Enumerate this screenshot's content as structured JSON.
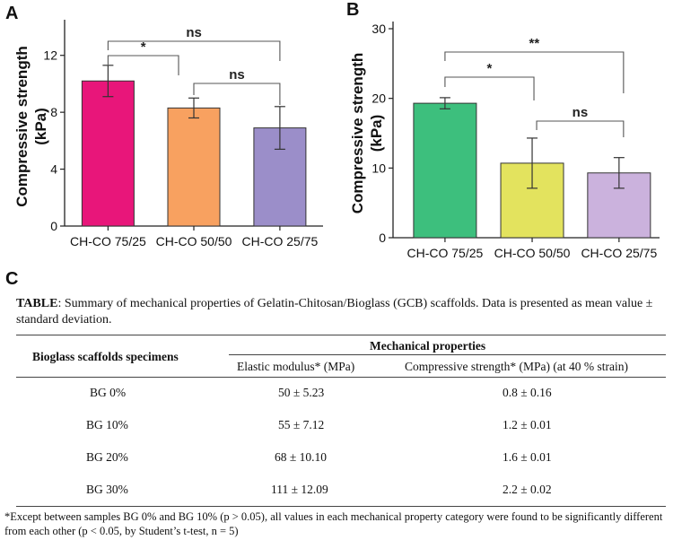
{
  "panels": {
    "a": "A",
    "b": "B",
    "c": "C"
  },
  "chart_data": [
    {
      "type": "bar",
      "panel": "A",
      "title": "",
      "xlabel": "",
      "ylabel": "Compressive strength\n(kPa)",
      "ylabel_lines": [
        "Compressive strength",
        "(kPa)"
      ],
      "ylim": [
        0,
        14
      ],
      "yticks": [
        0,
        4,
        8,
        12
      ],
      "categories": [
        "CH-CO 75/25",
        "CH-CO 50/50",
        "CH-CO 25/75"
      ],
      "values": [
        10.2,
        8.3,
        6.9
      ],
      "errors": [
        1.1,
        0.7,
        1.5
      ],
      "colors": [
        "#e8167a",
        "#f8a160",
        "#9b8ec9"
      ],
      "significance": [
        {
          "from": 0,
          "to": 1,
          "label": "*"
        },
        {
          "from": 0,
          "to": 2,
          "label": "ns"
        },
        {
          "from": 1,
          "to": 2,
          "label": "ns"
        }
      ]
    },
    {
      "type": "bar",
      "panel": "B",
      "title": "",
      "xlabel": "",
      "ylabel": "Compressive strength\n(kPa)",
      "ylabel_lines": [
        "Compressive strength",
        "(kPa)"
      ],
      "ylim": [
        0,
        30
      ],
      "yticks": [
        0,
        10,
        20,
        30
      ],
      "categories": [
        "CH-CO 75/25",
        "CH-CO 50/50",
        "CH-CO 25/75"
      ],
      "values": [
        19.3,
        10.7,
        9.3
      ],
      "errors": [
        0.8,
        3.6,
        2.2
      ],
      "colors": [
        "#3dbf7d",
        "#e3e35e",
        "#cbb2dd"
      ],
      "significance": [
        {
          "from": 0,
          "to": 1,
          "label": "*"
        },
        {
          "from": 0,
          "to": 2,
          "label": "**"
        },
        {
          "from": 1,
          "to": 2,
          "label": "ns"
        }
      ]
    }
  ],
  "table": {
    "caption_bold": "TABLE",
    "caption_rest": ": Summary of mechanical properties of Gelatin-Chitosan/Bioglass (GCB) scaffolds. Data is presented as mean value ± standard deviation.",
    "col_specimen": "Bioglass scaffolds specimens",
    "col_group": "Mechanical properties",
    "col_elastic": "Elastic modulus* (MPa)",
    "col_compressive": "Compressive strength* (MPa) (at 40 % strain)",
    "rows": [
      {
        "specimen": "BG 0%",
        "elastic": "50 ± 5.23",
        "compressive": "0.8 ± 0.16"
      },
      {
        "specimen": "BG 10%",
        "elastic": "55 ± 7.12",
        "compressive": "1.2 ± 0.01"
      },
      {
        "specimen": "BG 20%",
        "elastic": "68 ± 10.10",
        "compressive": "1.6 ± 0.01"
      },
      {
        "specimen": "BG 30%",
        "elastic": "111 ± 12.09",
        "compressive": "2.2 ± 0.02"
      }
    ],
    "footnote": "*Except between samples BG 0% and BG 10% (p > 0.05), all values in each mechanical property category were found to be significantly different from each other (p < 0.05, by Student’s t-test, n = 5)"
  }
}
